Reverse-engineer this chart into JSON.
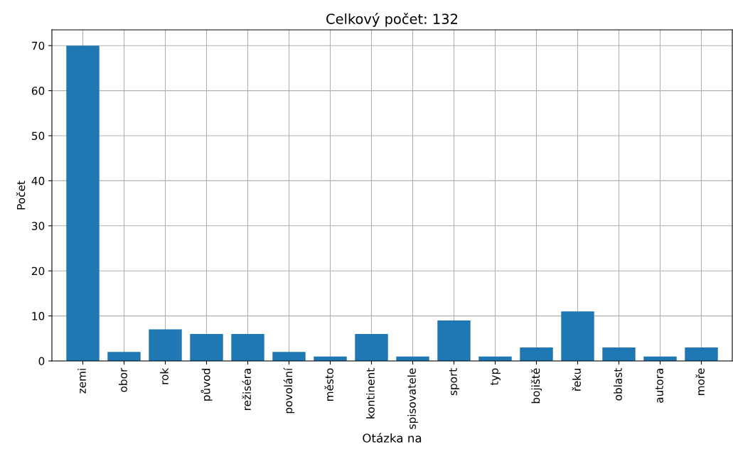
{
  "chart_data": {
    "type": "bar",
    "title": "Celkový počet: 132",
    "xlabel": "Otázka na",
    "ylabel": "Počet",
    "categories": [
      "zemi",
      "obor",
      "rok",
      "původ",
      "režiséra",
      "povolání",
      "město",
      "kontinent",
      "spisovatele",
      "sport",
      "typ",
      "bojiště",
      "řeku",
      "oblast",
      "autora",
      "moře"
    ],
    "values": [
      70,
      2,
      7,
      6,
      6,
      2,
      1,
      6,
      1,
      9,
      1,
      3,
      11,
      3,
      1,
      3
    ],
    "color": "#1f77b4",
    "ylim": [
      0,
      73.5
    ],
    "yticks": [
      0,
      10,
      20,
      30,
      40,
      50,
      60,
      70
    ],
    "grid": true
  }
}
